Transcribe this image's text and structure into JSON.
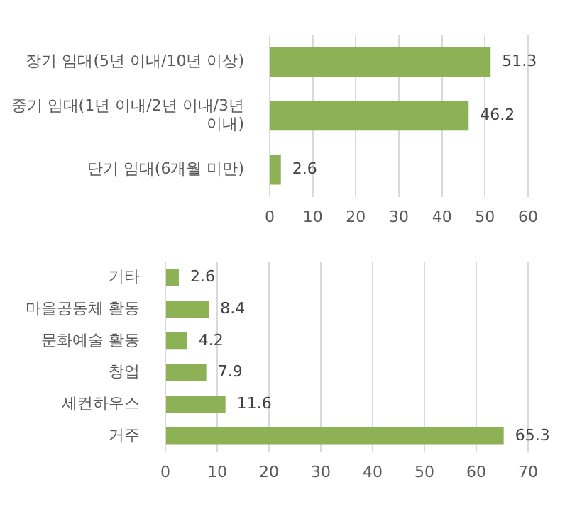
{
  "chart_data": [
    {
      "type": "bar",
      "orientation": "horizontal",
      "categories": [
        "장기 임대(5년 이내/10년 이상)",
        "중기 임대(1년 이내/2년 이내/3년 이내)",
        "단기 임대(6개월 미만)"
      ],
      "values": [
        51.3,
        46.2,
        2.6
      ],
      "color": "#8db255",
      "xlim": [
        0,
        60
      ],
      "xticks": [
        0,
        10,
        20,
        30,
        40,
        50,
        60
      ],
      "grid": "x",
      "data_labels": true,
      "legend": false
    },
    {
      "type": "bar",
      "orientation": "horizontal",
      "categories": [
        "기타",
        "마을공동체 활동",
        "문화예술 활동",
        "창업",
        "세컨하우스",
        "거주"
      ],
      "values": [
        2.6,
        8.4,
        4.2,
        7.9,
        11.6,
        65.3
      ],
      "color": "#8db255",
      "xlim": [
        0,
        70
      ],
      "xticks": [
        0,
        10,
        20,
        30,
        40,
        50,
        60,
        70
      ],
      "grid": "x",
      "data_labels": true,
      "legend": false
    }
  ]
}
